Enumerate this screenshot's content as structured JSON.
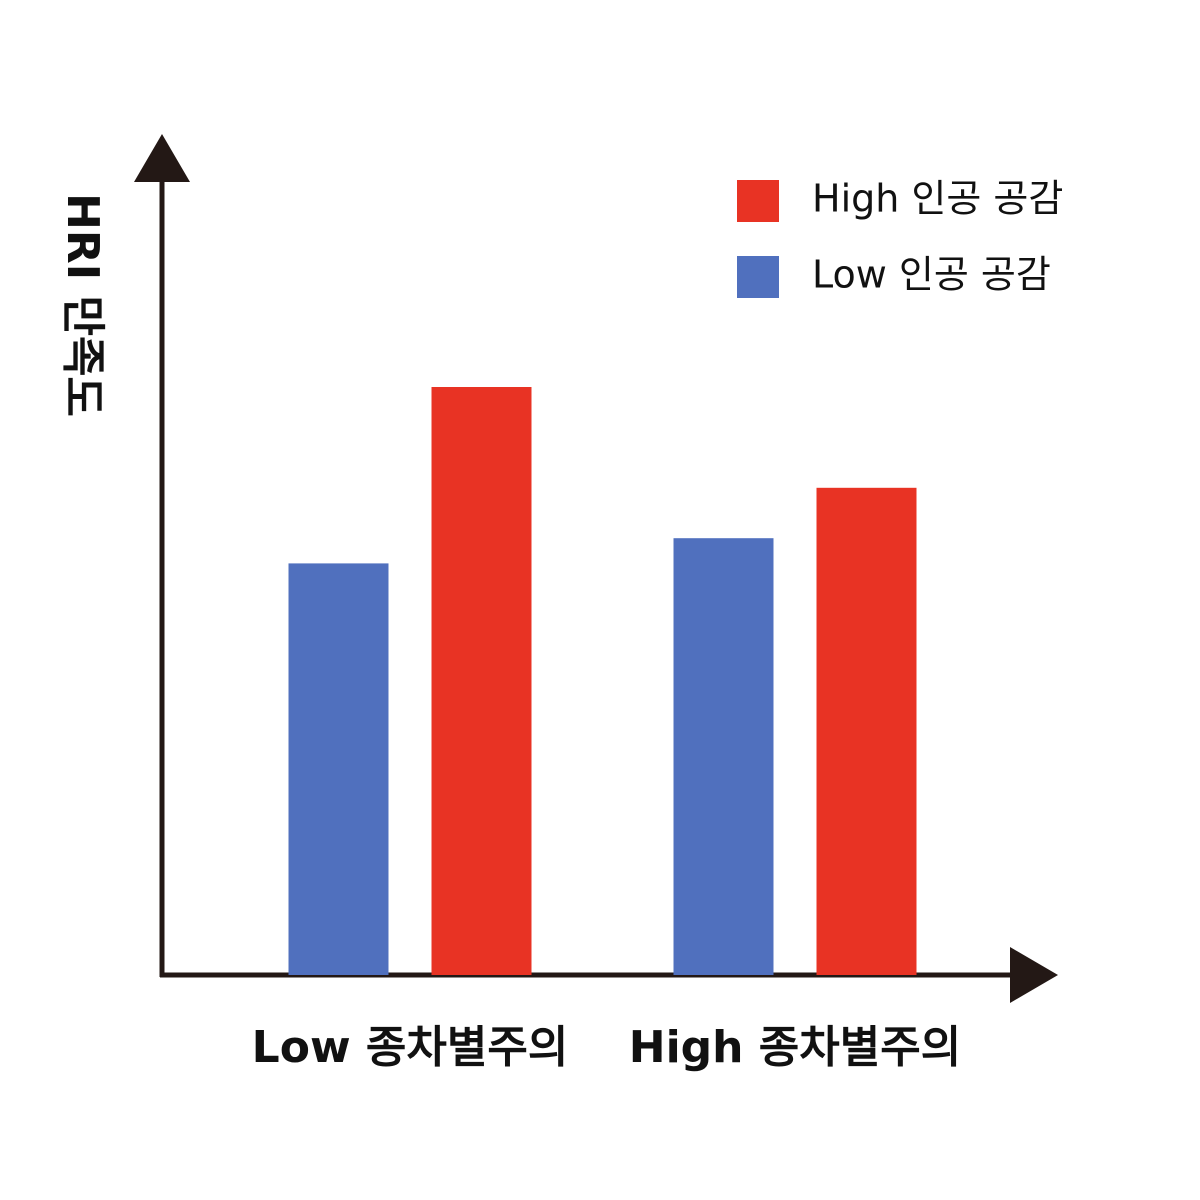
{
  "chart_data": {
    "type": "bar",
    "y_label": "HRI 만족도",
    "categories": [
      "Low 종차별주의",
      "High 종차별주의"
    ],
    "series": [
      {
        "name": "High 인공 공감",
        "color": "#e83324",
        "values": [
          70,
          58
        ]
      },
      {
        "name": "Low 인공 공감",
        "color": "#5070be",
        "values": [
          49,
          52
        ]
      }
    ],
    "ylim": [
      0,
      100
    ],
    "legend": "top-right"
  }
}
